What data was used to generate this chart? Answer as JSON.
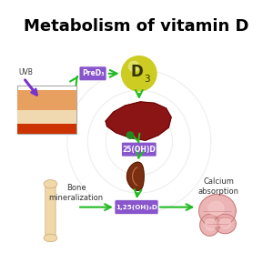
{
  "title": "Metabolism of vitamin D",
  "title_fontsize": 13,
  "title_fontweight": "bold",
  "bg_color": "#ffffff",
  "arrow_color": "#22bb22",
  "label_preD": "PreD₃",
  "label_D3": "D₃",
  "label_25OHD": "25(OH)D",
  "label_125OHD": "1,25(OH)₂D",
  "label_bone": "Bone\nmineralization",
  "label_calcium": "Calcium\nabsorption",
  "label_uvb": "UVB",
  "purple_color": "#8855cc",
  "D3_color": "#cccc22",
  "D3_text_color": "#333300"
}
